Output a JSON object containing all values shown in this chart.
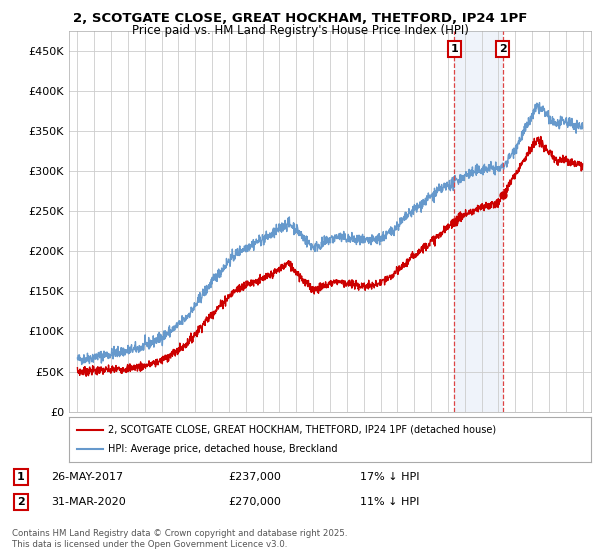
{
  "title1": "2, SCOTGATE CLOSE, GREAT HOCKHAM, THETFORD, IP24 1PF",
  "title2": "Price paid vs. HM Land Registry's House Price Index (HPI)",
  "legend_red": "2, SCOTGATE CLOSE, GREAT HOCKHAM, THETFORD, IP24 1PF (detached house)",
  "legend_blue": "HPI: Average price, detached house, Breckland",
  "transaction1_date": "26-MAY-2017",
  "transaction1_price": "£237,000",
  "transaction1_hpi": "17% ↓ HPI",
  "transaction1_year": 2017.38,
  "transaction2_date": "31-MAR-2020",
  "transaction2_price": "£270,000",
  "transaction2_hpi": "11% ↓ HPI",
  "transaction2_year": 2020.25,
  "footnote": "Contains HM Land Registry data © Crown copyright and database right 2025.\nThis data is licensed under the Open Government Licence v3.0.",
  "ylim": [
    0,
    475000
  ],
  "yticks": [
    0,
    50000,
    100000,
    150000,
    200000,
    250000,
    300000,
    350000,
    400000,
    450000
  ],
  "ytick_labels": [
    "£0",
    "£50K",
    "£100K",
    "£150K",
    "£200K",
    "£250K",
    "£300K",
    "£350K",
    "£400K",
    "£450K"
  ],
  "xlim_start": 1994.5,
  "xlim_end": 2025.5,
  "color_red": "#cc0000",
  "color_blue": "#6699cc",
  "color_vline": "#dd4444",
  "color_grid": "#cccccc",
  "color_bg_shade": "#dce6f5",
  "background_color": "#ffffff",
  "hpi_keypoints": [
    [
      1995.0,
      65000
    ],
    [
      1995.5,
      66000
    ],
    [
      1996.0,
      68000
    ],
    [
      1996.5,
      70000
    ],
    [
      1997.0,
      72000
    ],
    [
      1997.5,
      74000
    ],
    [
      1998.0,
      76000
    ],
    [
      1998.5,
      78000
    ],
    [
      1999.0,
      82000
    ],
    [
      1999.5,
      87000
    ],
    [
      2000.0,
      93000
    ],
    [
      2000.5,
      100000
    ],
    [
      2001.0,
      108000
    ],
    [
      2001.5,
      118000
    ],
    [
      2002.0,
      132000
    ],
    [
      2002.5,
      148000
    ],
    [
      2003.0,
      162000
    ],
    [
      2003.5,
      175000
    ],
    [
      2004.0,
      188000
    ],
    [
      2004.5,
      198000
    ],
    [
      2005.0,
      205000
    ],
    [
      2005.5,
      210000
    ],
    [
      2006.0,
      215000
    ],
    [
      2006.5,
      220000
    ],
    [
      2007.0,
      228000
    ],
    [
      2007.5,
      235000
    ],
    [
      2008.0,
      228000
    ],
    [
      2008.5,
      215000
    ],
    [
      2009.0,
      205000
    ],
    [
      2009.5,
      208000
    ],
    [
      2010.0,
      215000
    ],
    [
      2010.5,
      218000
    ],
    [
      2011.0,
      216000
    ],
    [
      2011.5,
      214000
    ],
    [
      2012.0,
      212000
    ],
    [
      2012.5,
      213000
    ],
    [
      2013.0,
      216000
    ],
    [
      2013.5,
      222000
    ],
    [
      2014.0,
      232000
    ],
    [
      2014.5,
      242000
    ],
    [
      2015.0,
      252000
    ],
    [
      2015.5,
      260000
    ],
    [
      2016.0,
      268000
    ],
    [
      2016.5,
      276000
    ],
    [
      2017.0,
      282000
    ],
    [
      2017.38,
      285000
    ],
    [
      2017.5,
      288000
    ],
    [
      2018.0,
      294000
    ],
    [
      2018.5,
      298000
    ],
    [
      2019.0,
      302000
    ],
    [
      2019.5,
      304000
    ],
    [
      2020.0,
      302000
    ],
    [
      2020.25,
      305000
    ],
    [
      2020.5,
      312000
    ],
    [
      2021.0,
      328000
    ],
    [
      2021.5,
      348000
    ],
    [
      2022.0,
      368000
    ],
    [
      2022.3,
      380000
    ],
    [
      2022.7,
      375000
    ],
    [
      2023.0,
      365000
    ],
    [
      2023.5,
      358000
    ],
    [
      2024.0,
      362000
    ],
    [
      2024.5,
      358000
    ],
    [
      2025.0,
      355000
    ]
  ],
  "price_keypoints": [
    [
      1995.0,
      50000
    ],
    [
      1995.5,
      50500
    ],
    [
      1996.0,
      51000
    ],
    [
      1996.5,
      51500
    ],
    [
      1997.0,
      52000
    ],
    [
      1997.5,
      53000
    ],
    [
      1998.0,
      54000
    ],
    [
      1998.5,
      55500
    ],
    [
      1999.0,
      57000
    ],
    [
      1999.5,
      60000
    ],
    [
      2000.0,
      64000
    ],
    [
      2000.5,
      70000
    ],
    [
      2001.0,
      76000
    ],
    [
      2001.5,
      85000
    ],
    [
      2002.0,
      97000
    ],
    [
      2002.5,
      110000
    ],
    [
      2003.0,
      122000
    ],
    [
      2003.5,
      133000
    ],
    [
      2004.0,
      144000
    ],
    [
      2004.5,
      153000
    ],
    [
      2005.0,
      158000
    ],
    [
      2005.5,
      162000
    ],
    [
      2006.0,
      165000
    ],
    [
      2006.5,
      170000
    ],
    [
      2007.0,
      178000
    ],
    [
      2007.5,
      185000
    ],
    [
      2008.0,
      175000
    ],
    [
      2008.5,
      162000
    ],
    [
      2009.0,
      152000
    ],
    [
      2009.5,
      155000
    ],
    [
      2010.0,
      160000
    ],
    [
      2010.5,
      163000
    ],
    [
      2011.0,
      160000
    ],
    [
      2011.5,
      158000
    ],
    [
      2012.0,
      156000
    ],
    [
      2012.5,
      157000
    ],
    [
      2013.0,
      160000
    ],
    [
      2013.5,
      166000
    ],
    [
      2014.0,
      175000
    ],
    [
      2014.5,
      185000
    ],
    [
      2015.0,
      195000
    ],
    [
      2015.5,
      204000
    ],
    [
      2016.0,
      212000
    ],
    [
      2016.5,
      220000
    ],
    [
      2017.0,
      230000
    ],
    [
      2017.38,
      237000
    ],
    [
      2017.5,
      240000
    ],
    [
      2018.0,
      246000
    ],
    [
      2018.5,
      250000
    ],
    [
      2019.0,
      254000
    ],
    [
      2019.5,
      258000
    ],
    [
      2020.0,
      260000
    ],
    [
      2020.25,
      270000
    ],
    [
      2020.5,
      278000
    ],
    [
      2021.0,
      295000
    ],
    [
      2021.5,
      315000
    ],
    [
      2022.0,
      330000
    ],
    [
      2022.3,
      338000
    ],
    [
      2022.7,
      332000
    ],
    [
      2023.0,
      322000
    ],
    [
      2023.5,
      312000
    ],
    [
      2024.0,
      315000
    ],
    [
      2024.5,
      310000
    ],
    [
      2025.0,
      308000
    ]
  ]
}
